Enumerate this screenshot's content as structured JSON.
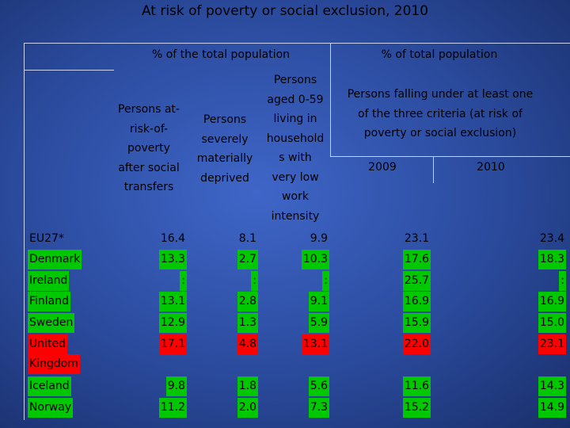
{
  "title": "At risk of poverty or social exclusion, 2010",
  "headers": {
    "group1": "% of the total population",
    "group2": "% of total population",
    "col1": [
      "Persons at-",
      "risk-of-",
      "poverty",
      "after social",
      "transfers"
    ],
    "col2": [
      "Persons",
      "severely",
      "materially",
      "deprived"
    ],
    "col3": [
      "Persons",
      "aged 0-59",
      "living in",
      "household",
      "s with",
      "very low",
      "work",
      "intensity"
    ],
    "col4": [
      "Persons falling under at least one",
      "of the three criteria (at risk of",
      "poverty or social exclusion)"
    ],
    "year1": "2009",
    "year2": "2010"
  },
  "rows": [
    {
      "country": "EU27*",
      "v": [
        "16.4",
        "8.1",
        "9.9",
        "23.1",
        "23.4"
      ],
      "hl": "none"
    },
    {
      "country": "Denmark",
      "v": [
        "13.3",
        "2.7",
        "10.3",
        "17.6",
        "18.3"
      ],
      "hl": "green"
    },
    {
      "country": "Ireland",
      "v": [
        ":",
        ":",
        ":",
        "25.7",
        ":"
      ],
      "hl": "green"
    },
    {
      "country": "Finland",
      "v": [
        "13.1",
        "2.8",
        "9.1",
        "16.9",
        "16.9"
      ],
      "hl": "green"
    },
    {
      "country": "Sweden",
      "v": [
        "12.9",
        "1.3",
        "5.9",
        "15.9",
        "15.0"
      ],
      "hl": "green"
    },
    {
      "country": "United",
      "country2": "Kingdom",
      "v": [
        "17.1",
        "4.8",
        "13.1",
        "22.0",
        "23.1"
      ],
      "hl": "red"
    },
    {
      "country": "Iceland",
      "v": [
        "9.8",
        "1.8",
        "5.6",
        "11.6",
        "14.3"
      ],
      "hl": "green"
    },
    {
      "country": "Norway",
      "v": [
        "11.2",
        "2.0",
        "7.3",
        "15.2",
        "14.9"
      ],
      "hl": "green"
    }
  ],
  "colors": {
    "highlight_good": "#00c800",
    "highlight_bad": "#ff0000"
  }
}
